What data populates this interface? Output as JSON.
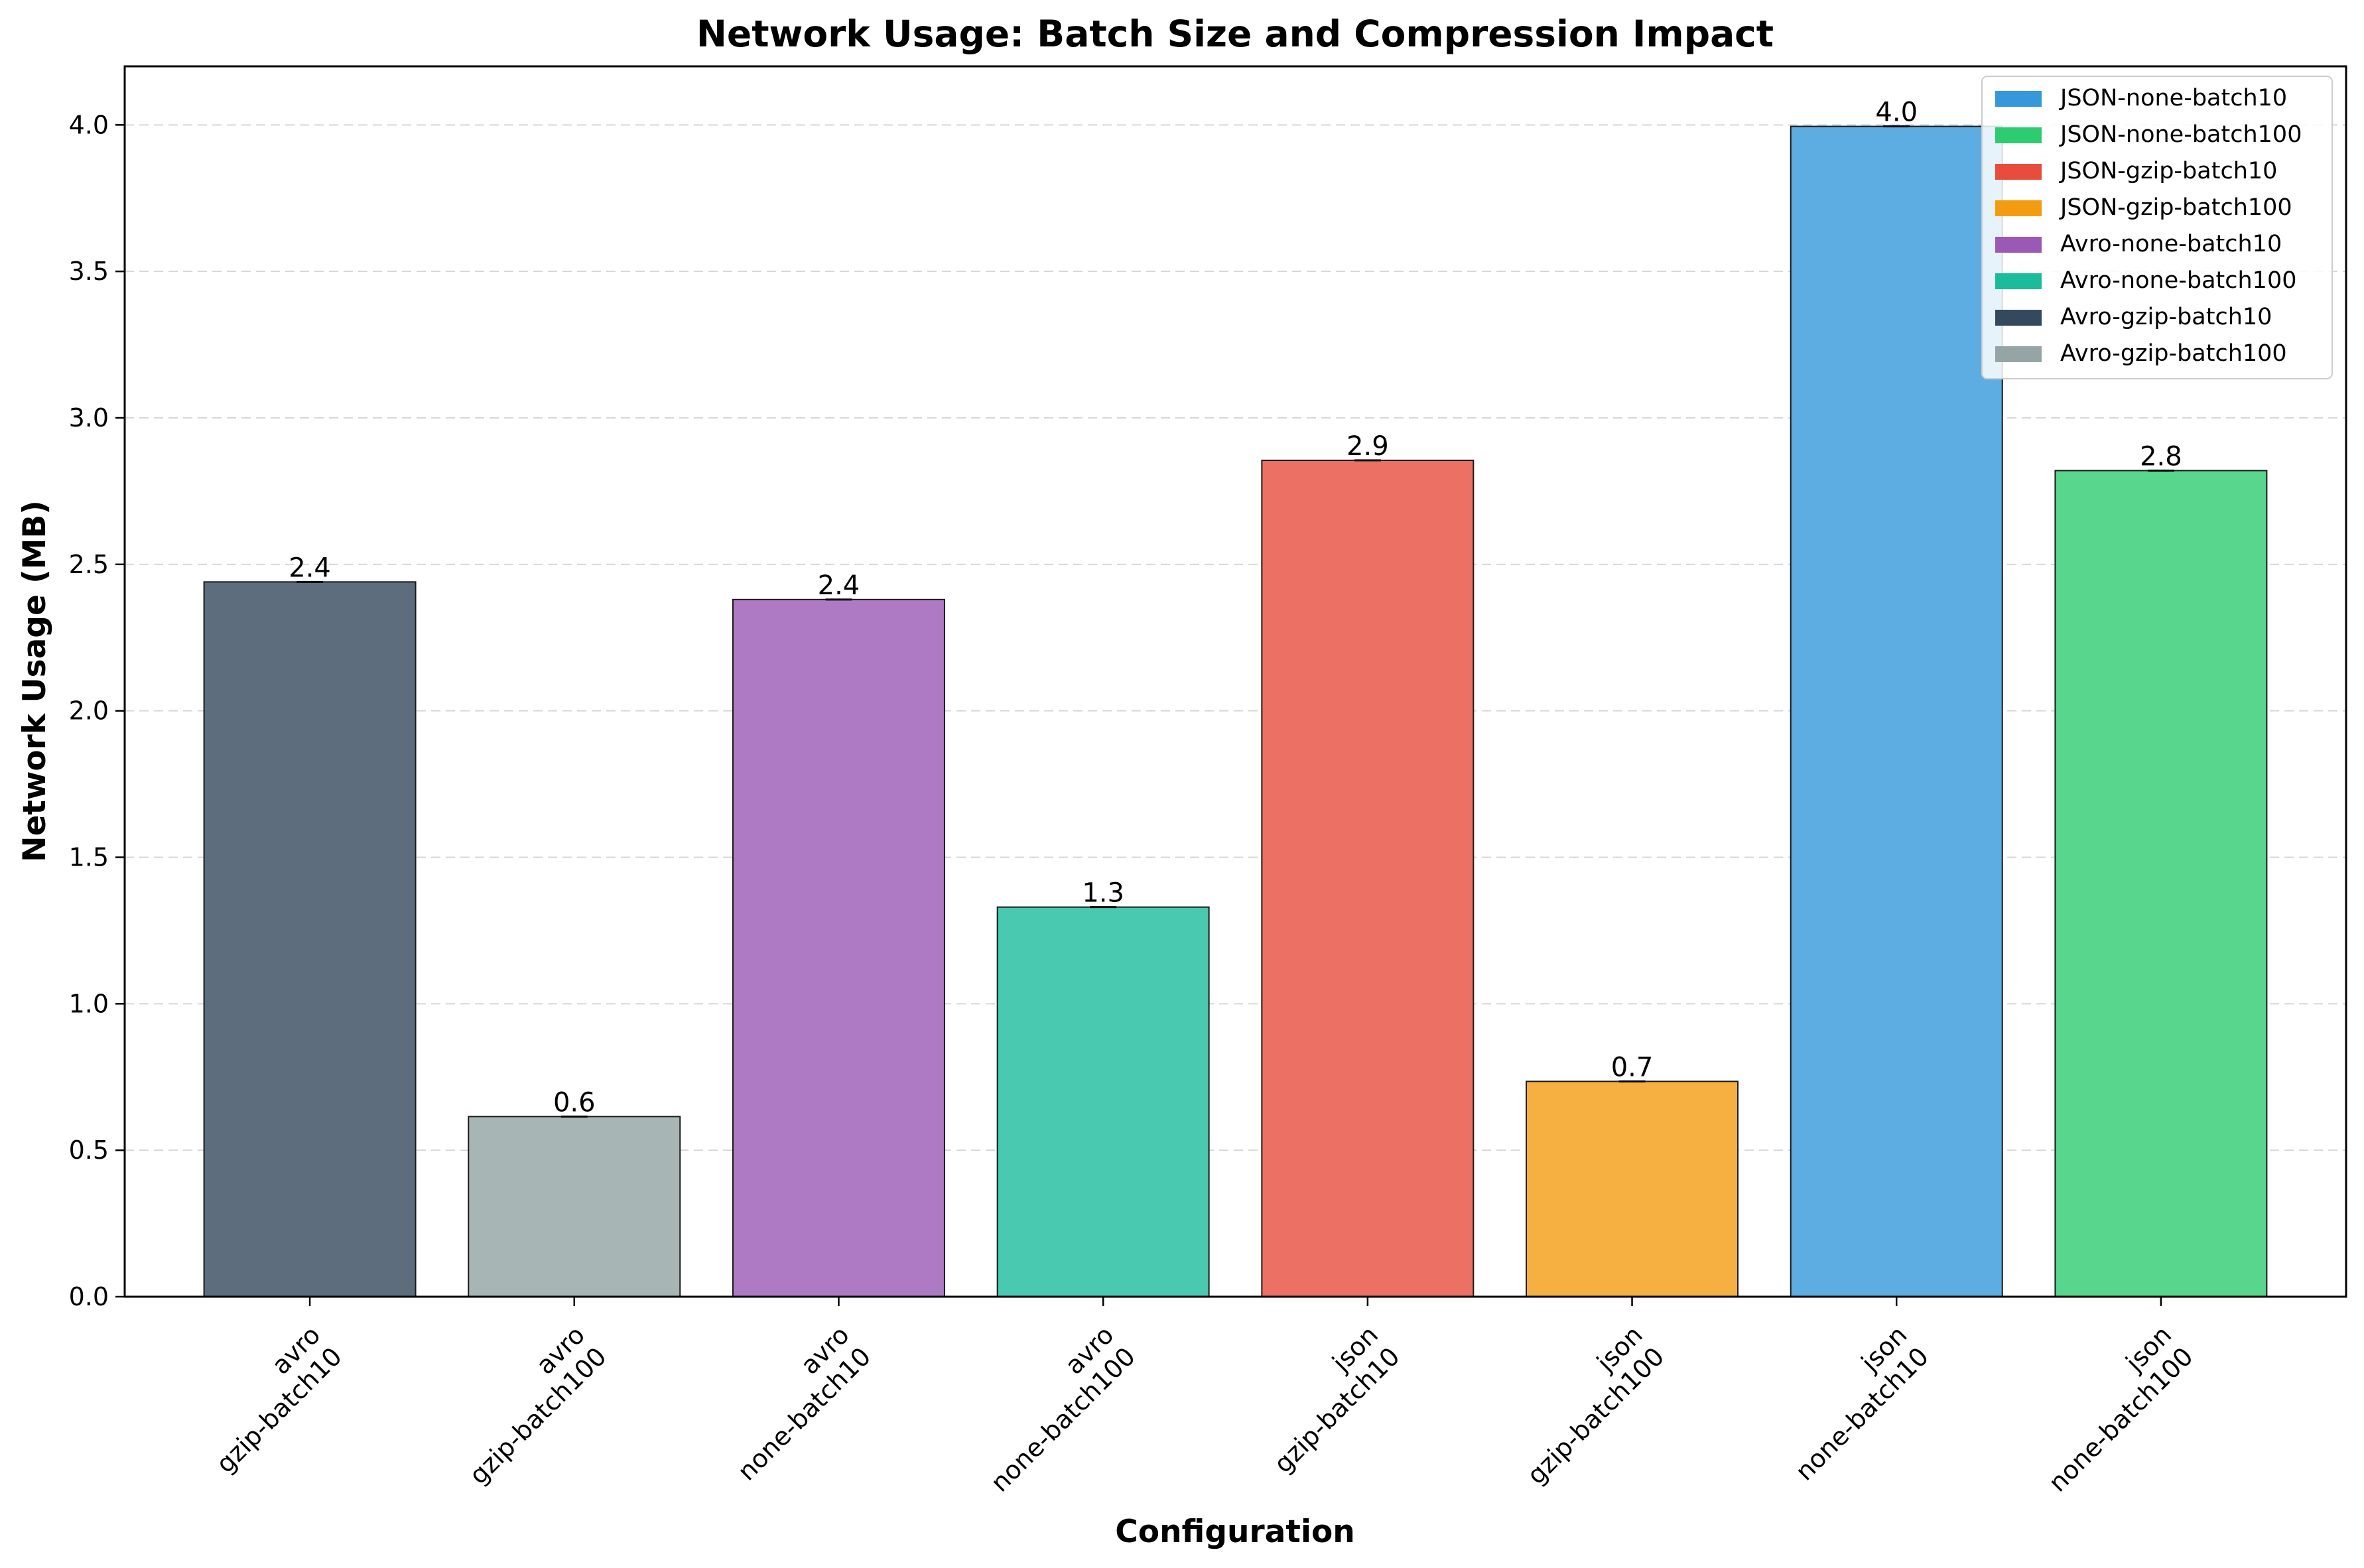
{
  "chart_data": {
    "type": "bar",
    "title": "Network Usage: Batch Size and Compression Impact",
    "xlabel": "Configuration",
    "ylabel": "Network Usage (MB)",
    "ylim": [
      0,
      4.2
    ],
    "yticks": [
      0.0,
      0.5,
      1.0,
      1.5,
      2.0,
      2.5,
      3.0,
      3.5,
      4.0
    ],
    "ytick_labels": [
      "0.0",
      "0.5",
      "1.0",
      "1.5",
      "2.0",
      "2.5",
      "3.0",
      "3.5",
      "4.0"
    ],
    "grid": "y-dashed",
    "legend_position": "top-right",
    "categories": [
      [
        "avro",
        "gzip-batch10"
      ],
      [
        "avro",
        "gzip-batch100"
      ],
      [
        "avro",
        "none-batch10"
      ],
      [
        "avro",
        "none-batch100"
      ],
      [
        "json",
        "gzip-batch10"
      ],
      [
        "json",
        "gzip-batch100"
      ],
      [
        "json",
        "none-batch10"
      ],
      [
        "json",
        "none-batch100"
      ]
    ],
    "values": [
      2.44,
      0.615,
      2.38,
      1.33,
      2.855,
      0.735,
      3.995,
      2.82
    ],
    "value_labels": [
      "2.4",
      "0.6",
      "2.4",
      "1.3",
      "2.9",
      "0.7",
      "4.0",
      "2.8"
    ],
    "bar_colors": [
      "#5d6d7e",
      "#a8b5b5",
      "#af7ac4",
      "#49c9b0",
      "#ec7063",
      "#f5b041",
      "#5dade2",
      "#58d68d"
    ],
    "legend": [
      {
        "label": "JSON-none-batch10",
        "color": "#3498db"
      },
      {
        "label": "JSON-none-batch100",
        "color": "#2ecc71"
      },
      {
        "label": "JSON-gzip-batch10",
        "color": "#e74c3c"
      },
      {
        "label": "JSON-gzip-batch100",
        "color": "#f39c12"
      },
      {
        "label": "Avro-none-batch10",
        "color": "#9b59b6"
      },
      {
        "label": "Avro-none-batch100",
        "color": "#1abc9c"
      },
      {
        "label": "Avro-gzip-batch10",
        "color": "#34495e"
      },
      {
        "label": "Avro-gzip-batch100",
        "color": "#95a5a6"
      }
    ]
  }
}
